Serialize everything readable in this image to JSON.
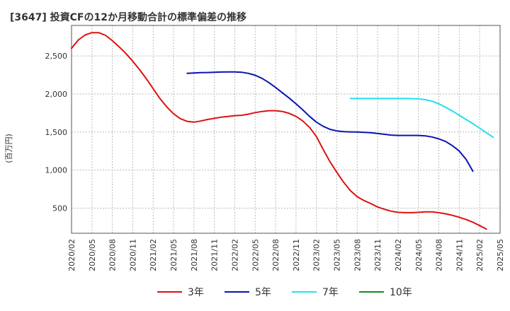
{
  "chart_data": {
    "type": "line",
    "title": "[3647]  投資CFの12か月移動合計の標準偏差の推移",
    "ylabel": "(百万円)",
    "xlabel": "",
    "ylim": [
      170,
      2900
    ],
    "yticks": [
      500,
      1000,
      1500,
      2000,
      2500
    ],
    "ytick_labels": [
      "500",
      "1,000",
      "1,500",
      "2,000",
      "2,500"
    ],
    "xticks": [
      "2020/02",
      "2020/05",
      "2020/08",
      "2020/11",
      "2021/02",
      "2021/05",
      "2021/08",
      "2021/11",
      "2022/02",
      "2022/05",
      "2022/08",
      "2022/11",
      "2023/02",
      "2023/05",
      "2023/08",
      "2023/11",
      "2024/02",
      "2024/05",
      "2024/08",
      "2024/11",
      "2025/02",
      "2025/05"
    ],
    "grid": true,
    "legend_position": "bottom",
    "series": [
      {
        "name": "3年",
        "color": "#dd1111",
        "start": "2020/02",
        "values": [
          2600,
          2710,
          2775,
          2805,
          2805,
          2770,
          2700,
          2620,
          2530,
          2430,
          2320,
          2200,
          2070,
          1940,
          1830,
          1740,
          1675,
          1640,
          1630,
          1645,
          1665,
          1680,
          1695,
          1705,
          1715,
          1720,
          1735,
          1755,
          1770,
          1780,
          1780,
          1770,
          1745,
          1705,
          1645,
          1560,
          1440,
          1270,
          1110,
          970,
          840,
          730,
          650,
          600,
          560,
          515,
          485,
          460,
          445,
          440,
          440,
          445,
          450,
          450,
          440,
          425,
          405,
          380,
          350,
          315,
          270,
          225
        ]
      },
      {
        "name": "5年",
        "color": "#0a14b0",
        "start": "2021/07",
        "values": [
          2270,
          2275,
          2280,
          2282,
          2285,
          2288,
          2290,
          2290,
          2285,
          2270,
          2245,
          2205,
          2150,
          2085,
          2015,
          1945,
          1870,
          1790,
          1705,
          1630,
          1575,
          1535,
          1515,
          1505,
          1502,
          1500,
          1495,
          1490,
          1480,
          1470,
          1460,
          1455,
          1455,
          1455,
          1455,
          1450,
          1435,
          1410,
          1375,
          1320,
          1250,
          1140,
          985
        ]
      },
      {
        "name": "7年",
        "color": "#22e0f0",
        "start": "2023/07",
        "values": [
          1940,
          1940,
          1940,
          1940,
          1940,
          1940,
          1940,
          1940,
          1940,
          1938,
          1935,
          1925,
          1905,
          1870,
          1825,
          1775,
          1720,
          1665,
          1610,
          1550,
          1490,
          1430
        ]
      },
      {
        "name": "10年",
        "color": "#1a8a1a",
        "start": "",
        "values": []
      }
    ]
  }
}
